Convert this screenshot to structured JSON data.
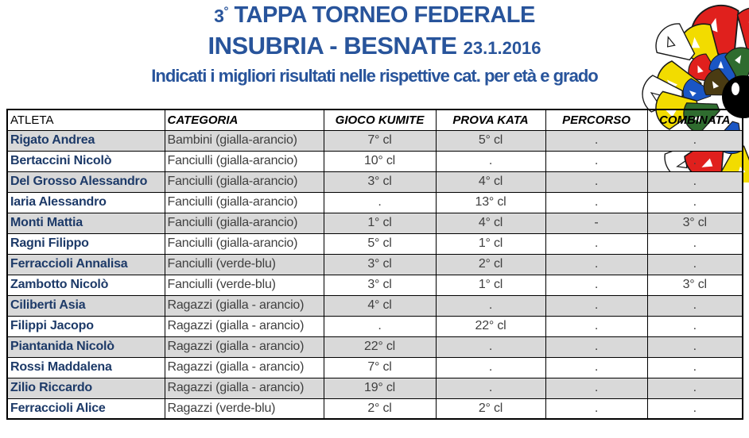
{
  "header": {
    "degree_num": "3",
    "degree_symbol": "°",
    "title_rest": " TAPPA TORNEO FEDERALE",
    "line2_main": "INSUBRIA - BESNATE",
    "line2_date": "23.1.2016",
    "subtitle": "Indicati i migliori risultati nelle rispettive cat. per età e grado"
  },
  "colors": {
    "title_blue": "#28549B",
    "athlete_navy": "#1D3A68",
    "body_text": "#3F3F3F",
    "row_shade": "#D9D9D9",
    "table_border": "#000000"
  },
  "logo": {
    "name": "karate-figures-pinwheel-logo",
    "ball_color": "#000000",
    "palette": {
      "red": "#E0201D",
      "yellow": "#F2DC00",
      "blue": "#1A56C4",
      "green": "#2F6C2F",
      "olive": "#4A3B12",
      "white": "#FFFFFF"
    },
    "wedges": [
      {
        "a": -20,
        "d": 85,
        "color": "red",
        "s": 1.35
      },
      {
        "a": 10,
        "d": 85,
        "color": "red",
        "s": 1.1
      },
      {
        "a": -40,
        "d": 80,
        "color": "yellow",
        "s": 1.15
      },
      {
        "a": -52,
        "d": 106,
        "color": "white",
        "s": 1.0
      },
      {
        "a": -56,
        "d": 58,
        "color": "red",
        "s": 0.8
      },
      {
        "a": -33,
        "d": 42,
        "color": "blue",
        "s": 0.75
      },
      {
        "a": -4,
        "d": 40,
        "color": "green",
        "s": 0.85
      },
      {
        "a": -78,
        "d": 82,
        "color": "yellow",
        "s": 1.1
      },
      {
        "a": -88,
        "d": 101,
        "color": "white",
        "s": 1.0
      },
      {
        "a": -84,
        "d": 58,
        "color": "blue",
        "s": 0.7
      },
      {
        "a": -64,
        "d": 32,
        "color": "olive",
        "s": 0.8
      },
      {
        "a": -100,
        "d": 84,
        "color": "yellow",
        "s": 1.05
      },
      {
        "a": -113,
        "d": 56,
        "color": "green",
        "s": 0.9
      },
      {
        "a": -137,
        "d": 106,
        "color": "white",
        "s": 1.0
      },
      {
        "a": -150,
        "d": 86,
        "color": "red",
        "s": 1.15
      },
      {
        "a": -176,
        "d": 86,
        "color": "yellow",
        "s": 1.0
      },
      {
        "a": -163,
        "d": 53,
        "color": "blue",
        "s": 0.8
      },
      {
        "a": 25,
        "d": 62,
        "color": "yellow",
        "s": 0.9
      }
    ]
  },
  "table": {
    "columns": [
      {
        "key": "atleta",
        "label": "ATLETA"
      },
      {
        "key": "categoria",
        "label": "CATEGORIA"
      },
      {
        "key": "gioco_kumite",
        "label": "GIOCO KUMITE"
      },
      {
        "key": "prova_kata",
        "label": "PROVA KATA"
      },
      {
        "key": "percorso",
        "label": "PERCORSO"
      },
      {
        "key": "combinata",
        "label": "COMBINATA"
      }
    ],
    "rows": [
      {
        "shaded": true,
        "atleta": "Rigato Andrea",
        "categoria": "Bambini (gialla-arancio)",
        "gioco_kumite": "7° cl",
        "prova_kata": "5° cl",
        "percorso": ".",
        "combinata": "."
      },
      {
        "shaded": false,
        "atleta": "Bertaccini Nicolò",
        "categoria": "Fanciulli (gialla-arancio)",
        "gioco_kumite": "10° cl",
        "prova_kata": ".",
        "percorso": ".",
        "combinata": "."
      },
      {
        "shaded": true,
        "atleta": "Del Grosso Alessandro",
        "categoria": "Fanciulli (gialla-arancio)",
        "gioco_kumite": "3° cl",
        "prova_kata": "4° cl",
        "percorso": ".",
        "combinata": "."
      },
      {
        "shaded": false,
        "atleta": "Iaria Alessandro",
        "categoria": "Fanciulli (gialla-arancio)",
        "gioco_kumite": ".",
        "prova_kata": "13° cl",
        "percorso": ".",
        "combinata": "."
      },
      {
        "shaded": true,
        "atleta": "Monti Mattia",
        "categoria": "Fanciulli (gialla-arancio)",
        "gioco_kumite": "1° cl",
        "prova_kata": "4° cl",
        "percorso": "-",
        "combinata": "3° cl"
      },
      {
        "shaded": false,
        "atleta": "Ragni Filippo",
        "categoria": "Fanciulli (gialla-arancio)",
        "gioco_kumite": "5° cl",
        "prova_kata": "1° cl",
        "percorso": ".",
        "combinata": "."
      },
      {
        "shaded": true,
        "atleta": "Ferraccioli Annalisa",
        "categoria": "Fanciulli (verde-blu)",
        "gioco_kumite": "3° cl",
        "prova_kata": "2° cl",
        "percorso": ".",
        "combinata": "."
      },
      {
        "shaded": false,
        "atleta": "Zambotto Nicolò",
        "categoria": "Fanciulli (verde-blu)",
        "gioco_kumite": "3° cl",
        "prova_kata": "1° cl",
        "percorso": ".",
        "combinata": "3° cl"
      },
      {
        "shaded": true,
        "atleta": "Ciliberti Asia",
        "categoria": "Ragazzi (gialla - arancio)",
        "gioco_kumite": "4° cl",
        "prova_kata": ".",
        "percorso": ".",
        "combinata": "."
      },
      {
        "shaded": false,
        "atleta": "Filippi Jacopo",
        "categoria": "Ragazzi (gialla - arancio)",
        "gioco_kumite": ".",
        "prova_kata": "22° cl",
        "percorso": ".",
        "combinata": "."
      },
      {
        "shaded": true,
        "atleta": "Piantanida Nicolò",
        "categoria": "Ragazzi (gialla - arancio)",
        "gioco_kumite": "22° cl",
        "prova_kata": ".",
        "percorso": ".",
        "combinata": "."
      },
      {
        "shaded": false,
        "atleta": "Rossi Maddalena",
        "categoria": "Ragazzi (gialla - arancio)",
        "gioco_kumite": "7° cl",
        "prova_kata": ".",
        "percorso": ".",
        "combinata": "."
      },
      {
        "shaded": true,
        "atleta": "Zilio Riccardo",
        "categoria": "Ragazzi (gialla - arancio)",
        "gioco_kumite": "19° cl",
        "prova_kata": ".",
        "percorso": ".",
        "combinata": "."
      },
      {
        "shaded": false,
        "atleta": "Ferraccioli Alice",
        "categoria": "Ragazzi (verde-blu)",
        "gioco_kumite": "2° cl",
        "prova_kata": "2° cl",
        "percorso": ".",
        "combinata": "."
      }
    ]
  }
}
